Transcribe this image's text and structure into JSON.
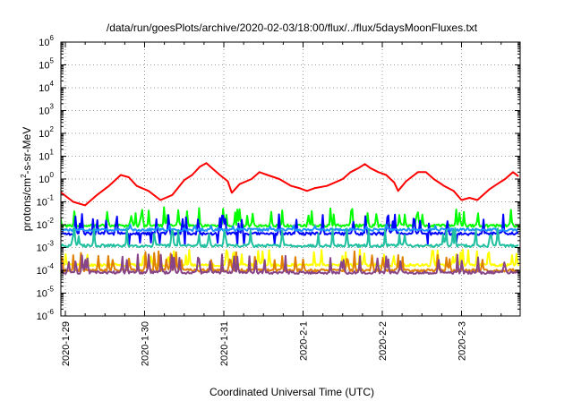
{
  "chart_data": {
    "type": "line",
    "title": "/data/run/goesPlots/archive/2020-02-03/18:00/flux/../flux/5daysMoonFluxes.txt",
    "xlabel": "Coordinated Universal Time (UTC)",
    "ylabel_main": "protons/cm",
    "ylabel_sup": "2",
    "ylabel_tail": "-s-sr-MeV",
    "y_scale": "log",
    "ylim": [
      1e-06,
      1000000.0
    ],
    "y_ticks": [
      {
        "base": "10",
        "exp": "6",
        "value": 1000000.0
      },
      {
        "base": "10",
        "exp": "5",
        "value": 100000.0
      },
      {
        "base": "10",
        "exp": "4",
        "value": 10000.0
      },
      {
        "base": "10",
        "exp": "3",
        "value": 1000.0
      },
      {
        "base": "10",
        "exp": "2",
        "value": 100.0
      },
      {
        "base": "10",
        "exp": "1",
        "value": 10.0
      },
      {
        "base": "10",
        "exp": "0",
        "value": 1.0
      },
      {
        "base": "10",
        "exp": "-1",
        "value": 0.1
      },
      {
        "base": "10",
        "exp": "-2",
        "value": 0.01
      },
      {
        "base": "10",
        "exp": "-3",
        "value": 0.001
      },
      {
        "base": "10",
        "exp": "-4",
        "value": 0.0001
      },
      {
        "base": "10",
        "exp": "-5",
        "value": 1e-05
      },
      {
        "base": "10",
        "exp": "-6",
        "value": 1e-06
      }
    ],
    "x_range_days": [
      0,
      5.72
    ],
    "x_ticks": [
      {
        "label": "2020-1-29",
        "day": 0
      },
      {
        "label": "2020-1-30",
        "day": 1
      },
      {
        "label": "2020-1-31",
        "day": 2
      },
      {
        "label": "2020-2-1",
        "day": 3
      },
      {
        "label": "2020-2-2",
        "day": 4
      },
      {
        "label": "2020-2-3",
        "day": 5
      }
    ],
    "grid": true,
    "series": [
      {
        "color": "#ff0000",
        "values": [
          [
            -0.08,
            0.3
          ],
          [
            0.1,
            0.1
          ],
          [
            0.25,
            0.07
          ],
          [
            0.4,
            0.2
          ],
          [
            0.55,
            0.5
          ],
          [
            0.7,
            1.5
          ],
          [
            0.8,
            1.2
          ],
          [
            0.9,
            0.5
          ],
          [
            1.05,
            0.3
          ],
          [
            1.2,
            0.12
          ],
          [
            1.35,
            0.2
          ],
          [
            1.5,
            0.9
          ],
          [
            1.6,
            1.5
          ],
          [
            1.7,
            3.5
          ],
          [
            1.78,
            5
          ],
          [
            1.85,
            3
          ],
          [
            1.95,
            1.5
          ],
          [
            2.05,
            0.8
          ],
          [
            2.1,
            0.25
          ],
          [
            2.2,
            0.6
          ],
          [
            2.35,
            1.0
          ],
          [
            2.45,
            2
          ],
          [
            2.55,
            1.5
          ],
          [
            2.7,
            1.0
          ],
          [
            2.85,
            0.5
          ],
          [
            2.95,
            0.4
          ],
          [
            3.05,
            0.3
          ],
          [
            3.15,
            0.4
          ],
          [
            3.3,
            0.5
          ],
          [
            3.4,
            0.7
          ],
          [
            3.5,
            1.0
          ],
          [
            3.6,
            2
          ],
          [
            3.7,
            3
          ],
          [
            3.78,
            4.5
          ],
          [
            3.85,
            3
          ],
          [
            3.95,
            2
          ],
          [
            4.05,
            1.5
          ],
          [
            4.15,
            0.7
          ],
          [
            4.2,
            0.3
          ],
          [
            4.3,
            0.8
          ],
          [
            4.45,
            2
          ],
          [
            4.55,
            2
          ],
          [
            4.65,
            1.0
          ],
          [
            4.78,
            0.5
          ],
          [
            4.9,
            0.3
          ],
          [
            5.0,
            0.12
          ],
          [
            5.1,
            0.15
          ],
          [
            5.2,
            0.12
          ],
          [
            5.35,
            0.35
          ],
          [
            5.45,
            0.6
          ],
          [
            5.55,
            1.0
          ],
          [
            5.65,
            2
          ],
          [
            5.72,
            1.3
          ]
        ]
      },
      {
        "color": "#00ff00",
        "base": 0.009,
        "peak": 0.06,
        "spike_count": 42,
        "seed": 3
      },
      {
        "color": "#0000ff",
        "base": 0.004,
        "peak": 0.03,
        "dip": 0.0012,
        "spike_count": 36,
        "seed": 11
      },
      {
        "color": "#1e90ff",
        "base": 0.006,
        "peak": 0.01,
        "spike_count": 12,
        "seed": 17
      },
      {
        "color": "#20c0a0",
        "base": 0.0012,
        "peak": 0.008,
        "spike_count": 30,
        "seed": 29
      },
      {
        "color": "#ffff00",
        "base": 0.00017,
        "peak": 0.0008,
        "spike_count": 40,
        "seed": 41
      },
      {
        "color": "#e08000",
        "base": 0.0001,
        "peak": 0.0007,
        "spike_count": 38,
        "seed": 53
      },
      {
        "color": "#884488",
        "base": 8e-05,
        "peak": 0.0005,
        "spike_count": 40,
        "seed": 67
      }
    ]
  }
}
